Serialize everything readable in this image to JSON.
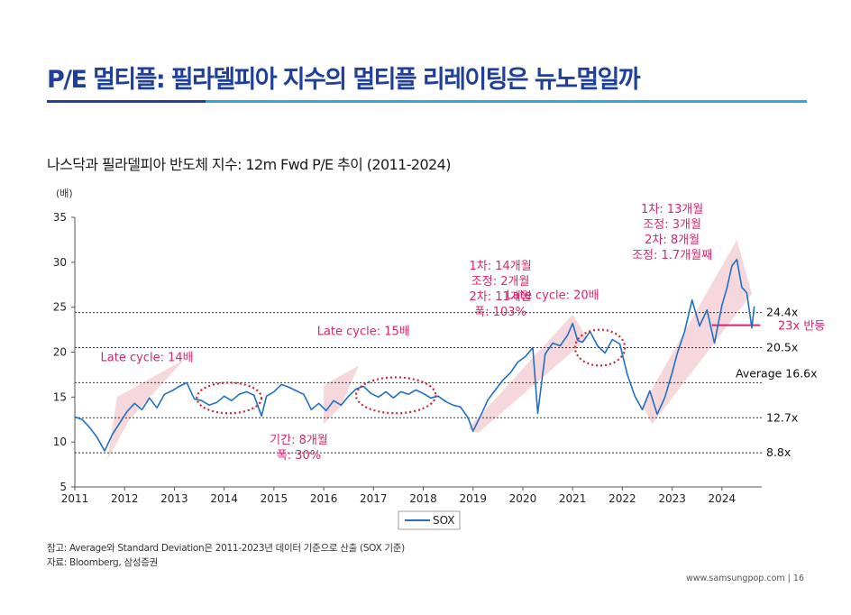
{
  "page": {
    "title": "P/E 멀티플: 필라델피아 지수의 멀티플 리레이팅은 뉴노멀일까",
    "subtitle": "나스닥과 필라델피아 반도체 지수: 12m Fwd P/E 추이 (2011-2024)",
    "note": "참고: Average와 Standard Deviation은 2011-2023년 데이터 기준으로 산출 (SOX 기준)",
    "source": "자료: Bloomberg, 삼성증권",
    "footer_url": "www.samsungpop.com",
    "page_number": "16",
    "colors": {
      "title": "#1f3f9a",
      "accent": "#2aa7e0",
      "series": "#1f6fc5",
      "annotation": "#d9246e",
      "band": "#f3c9cf"
    }
  },
  "chart_data": {
    "type": "line",
    "ylabel": "(배)",
    "ylim": [
      5,
      35
    ],
    "yticks": [
      5,
      10,
      15,
      20,
      25,
      30,
      35
    ],
    "xlim": [
      2011,
      2024.8
    ],
    "xticks": [
      2011,
      2012,
      2013,
      2014,
      2015,
      2016,
      2017,
      2018,
      2019,
      2020,
      2021,
      2022,
      2023,
      2024
    ],
    "series": [
      {
        "name": "SOX",
        "x": [
          2011.0,
          2011.15,
          2011.3,
          2011.45,
          2011.6,
          2011.75,
          2011.9,
          2012.05,
          2012.2,
          2012.35,
          2012.5,
          2012.65,
          2012.8,
          2012.95,
          2013.1,
          2013.25,
          2013.4,
          2013.55,
          2013.7,
          2013.85,
          2014.0,
          2014.15,
          2014.3,
          2014.45,
          2014.6,
          2014.75,
          2014.85,
          2015.0,
          2015.15,
          2015.3,
          2015.45,
          2015.6,
          2015.75,
          2015.9,
          2016.05,
          2016.2,
          2016.35,
          2016.5,
          2016.65,
          2016.8,
          2016.95,
          2017.1,
          2017.25,
          2017.4,
          2017.55,
          2017.7,
          2017.85,
          2018.0,
          2018.15,
          2018.3,
          2018.45,
          2018.6,
          2018.75,
          2018.9,
          2019.0,
          2019.15,
          2019.3,
          2019.45,
          2019.6,
          2019.75,
          2019.9,
          2020.05,
          2020.2,
          2020.3,
          2020.45,
          2020.6,
          2020.75,
          2020.9,
          2021.0,
          2021.1,
          2021.2,
          2021.35,
          2021.5,
          2021.65,
          2021.8,
          2021.95,
          2022.1,
          2022.25,
          2022.4,
          2022.55,
          2022.7,
          2022.85,
          2023.0,
          2023.1,
          2023.25,
          2023.4,
          2023.55,
          2023.7,
          2023.85,
          2024.0,
          2024.1,
          2024.2,
          2024.3,
          2024.4,
          2024.5,
          2024.6,
          2024.65
        ],
        "values": [
          12.8,
          12.5,
          11.6,
          10.5,
          9.0,
          10.8,
          12.1,
          13.4,
          14.3,
          13.6,
          14.9,
          13.8,
          15.3,
          15.7,
          16.2,
          16.6,
          14.8,
          14.6,
          14.1,
          14.4,
          15.1,
          14.6,
          15.3,
          15.6,
          15.2,
          12.9,
          15.1,
          15.6,
          16.4,
          16.1,
          15.7,
          15.3,
          13.6,
          14.3,
          13.5,
          14.6,
          14.1,
          15.1,
          15.9,
          16.2,
          15.4,
          15.0,
          15.6,
          14.9,
          15.6,
          15.3,
          15.8,
          15.4,
          14.9,
          15.1,
          14.5,
          14.1,
          13.9,
          12.7,
          11.2,
          12.9,
          14.7,
          15.8,
          16.9,
          17.7,
          18.9,
          19.5,
          20.5,
          13.2,
          19.8,
          21.0,
          20.7,
          21.9,
          23.2,
          21.3,
          21.1,
          22.3,
          20.7,
          19.9,
          21.4,
          20.9,
          17.5,
          15.1,
          13.6,
          15.7,
          13.1,
          14.9,
          17.7,
          19.8,
          22.3,
          25.8,
          22.9,
          24.7,
          21.0,
          25.2,
          27.1,
          29.6,
          30.3,
          27.2,
          26.6,
          22.7,
          25.1
        ]
      }
    ],
    "reference_lines": [
      {
        "value": 24.4,
        "label": "24.4x"
      },
      {
        "value": 20.5,
        "label": "20.5x"
      },
      {
        "value": 16.6,
        "label": "Average 16.6x"
      },
      {
        "value": 12.7,
        "label": "12.7x"
      },
      {
        "value": 8.8,
        "label": "8.8x"
      }
    ],
    "highlight_line": {
      "value": 23.0,
      "label": "23x 반등",
      "x_start": 2023.8,
      "x_end": 2024.8
    },
    "bands": [
      {
        "x": [
          2011.65,
          2012.1,
          2013.2,
          2011.85
        ],
        "y": [
          8.0,
          12.5,
          19.2,
          15.0
        ]
      },
      {
        "x": [
          2016.0,
          2016.35,
          2016.7,
          2016.0
        ],
        "y": [
          12.0,
          14.0,
          18.5,
          16.3
        ]
      },
      {
        "x": [
          2018.9,
          2019.1,
          2021.3,
          2021.0
        ],
        "y": [
          11.5,
          11.0,
          21.5,
          24.2
        ]
      },
      {
        "x": [
          2022.4,
          2022.6,
          2024.6,
          2024.3
        ],
        "y": [
          14.0,
          12.0,
          26.5,
          32.5
        ]
      }
    ],
    "ellipses": [
      {
        "cx": 2014.1,
        "cy": 14.9,
        "rx": 0.65,
        "ry": 1.7
      },
      {
        "cx": 2017.45,
        "cy": 15.2,
        "rx": 0.8,
        "ry": 2.0
      },
      {
        "cx": 2021.55,
        "cy": 20.5,
        "rx": 0.5,
        "ry": 2.0
      }
    ],
    "annotations": [
      {
        "x": 2012.45,
        "y": 19.0,
        "lines": [
          "Late cycle: 14배"
        ]
      },
      {
        "x": 2016.8,
        "y": 21.9,
        "lines": [
          "Late cycle: 15배"
        ]
      },
      {
        "x": 2020.6,
        "y": 25.9,
        "lines": [
          "Late cycle: 20배"
        ]
      },
      {
        "x": 2015.5,
        "y": 9.8,
        "lines": [
          "기간: 8개월",
          "폭: 30%"
        ]
      },
      {
        "x": 2019.55,
        "y": 29.2,
        "lines": [
          "1차: 14개월",
          "조정: 2개월",
          "2차: 11개월",
          "폭: 103%"
        ]
      },
      {
        "x": 2023.0,
        "y": 35.5,
        "lines": [
          "1차: 13개월",
          "조정: 3개월",
          "2차: 8개월",
          "조정: 1.7개월째"
        ]
      }
    ],
    "legend": [
      "SOX"
    ]
  }
}
